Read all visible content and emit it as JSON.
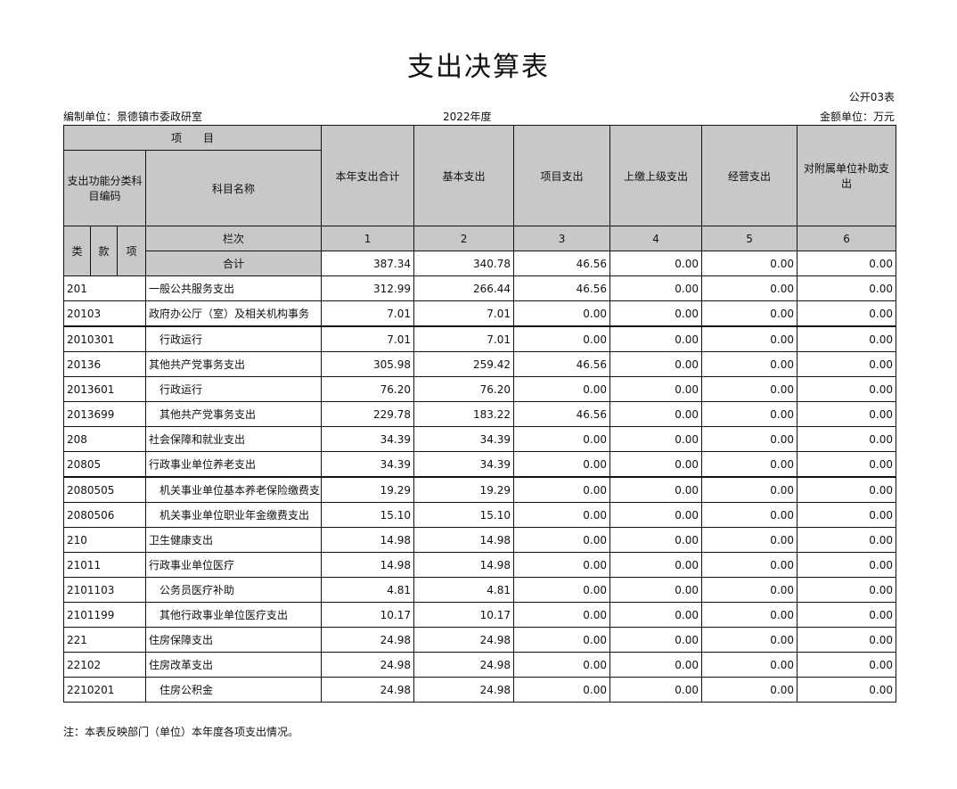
{
  "title": "支出决算表",
  "form_no": "公开03表",
  "unit_label": "编制单位：景德镇市委政研室",
  "year": "2022年度",
  "currency": "金额单位：万元",
  "headers": {
    "item": "项　　目",
    "code": "支出功能分类科目编码",
    "name": "科目名称",
    "c1": "本年支出合计",
    "c2": "基本支出",
    "c3": "项目支出",
    "c4": "上缴上级支出",
    "c5": "经营支出",
    "c6": "对附属单位补助支出",
    "lei": "类",
    "kuan": "款",
    "xiang": "项",
    "lanci": "栏次",
    "n1": "1",
    "n2": "2",
    "n3": "3",
    "n4": "4",
    "n5": "5",
    "n6": "6",
    "total": "合计"
  },
  "total": [
    "387.34",
    "340.78",
    "46.56",
    "0.00",
    "0.00",
    "0.00"
  ],
  "rows": [
    [
      "201",
      "一般公共服务支出",
      "312.99",
      "266.44",
      "46.56",
      "0.00",
      "0.00",
      "0.00"
    ],
    [
      "20103",
      "政府办公厅（室）及相关机构事务",
      "7.01",
      "7.01",
      "0.00",
      "0.00",
      "0.00",
      "0.00"
    ],
    [
      "2010301",
      "　行政运行",
      "7.01",
      "7.01",
      "0.00",
      "0.00",
      "0.00",
      "0.00"
    ],
    [
      "20136",
      "其他共产党事务支出",
      "305.98",
      "259.42",
      "46.56",
      "0.00",
      "0.00",
      "0.00"
    ],
    [
      "2013601",
      "　行政运行",
      "76.20",
      "76.20",
      "0.00",
      "0.00",
      "0.00",
      "0.00"
    ],
    [
      "2013699",
      "　其他共产党事务支出",
      "229.78",
      "183.22",
      "46.56",
      "0.00",
      "0.00",
      "0.00"
    ],
    [
      "208",
      "社会保障和就业支出",
      "34.39",
      "34.39",
      "0.00",
      "0.00",
      "0.00",
      "0.00"
    ],
    [
      "20805",
      "行政事业单位养老支出",
      "34.39",
      "34.39",
      "0.00",
      "0.00",
      "0.00",
      "0.00"
    ],
    [
      "2080505",
      "　机关事业单位基本养老保险缴费支出",
      "19.29",
      "19.29",
      "0.00",
      "0.00",
      "0.00",
      "0.00"
    ],
    [
      "2080506",
      "　机关事业单位职业年金缴费支出",
      "15.10",
      "15.10",
      "0.00",
      "0.00",
      "0.00",
      "0.00"
    ],
    [
      "210",
      "卫生健康支出",
      "14.98",
      "14.98",
      "0.00",
      "0.00",
      "0.00",
      "0.00"
    ],
    [
      "21011",
      "行政事业单位医疗",
      "14.98",
      "14.98",
      "0.00",
      "0.00",
      "0.00",
      "0.00"
    ],
    [
      "2101103",
      "　公务员医疗补助",
      "4.81",
      "4.81",
      "0.00",
      "0.00",
      "0.00",
      "0.00"
    ],
    [
      "2101199",
      "　其他行政事业单位医疗支出",
      "10.17",
      "10.17",
      "0.00",
      "0.00",
      "0.00",
      "0.00"
    ],
    [
      "221",
      "住房保障支出",
      "24.98",
      "24.98",
      "0.00",
      "0.00",
      "0.00",
      "0.00"
    ],
    [
      "22102",
      "住房改革支出",
      "24.98",
      "24.98",
      "0.00",
      "0.00",
      "0.00",
      "0.00"
    ],
    [
      "2210201",
      "　住房公积金",
      "24.98",
      "24.98",
      "0.00",
      "0.00",
      "0.00",
      "0.00"
    ]
  ],
  "note": "注：本表反映部门（单位）本年度各项支出情况。"
}
